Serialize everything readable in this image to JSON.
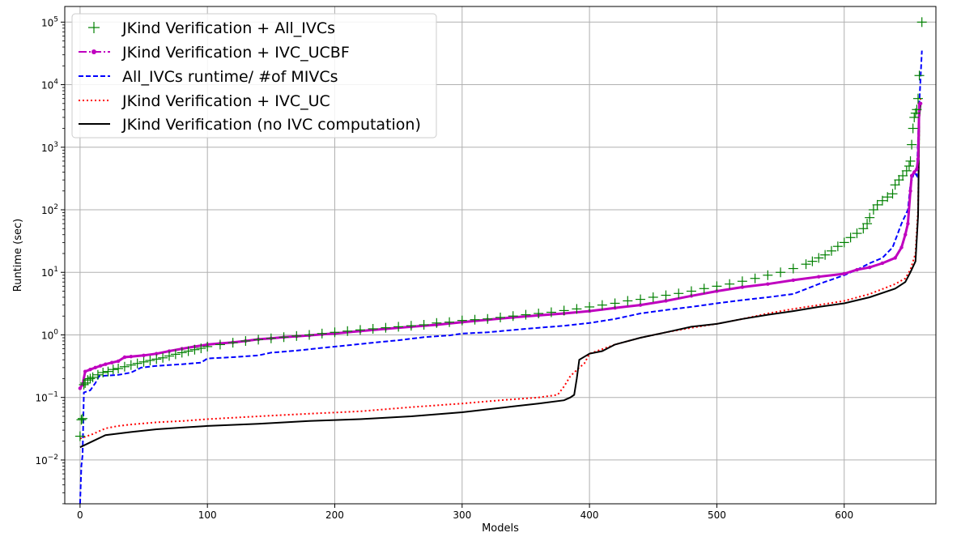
{
  "chart_data": {
    "type": "line",
    "title": "",
    "xlabel": "Models",
    "ylabel": "Runtime (sec)",
    "xscale": "linear",
    "yscale": "log",
    "xlim": [
      -12,
      672
    ],
    "ylim_exp": [
      -2.7,
      5.25
    ],
    "xticks": [
      0,
      100,
      200,
      300,
      400,
      500,
      600
    ],
    "ytick_exponents": [
      -2,
      -1,
      0,
      1,
      2,
      3,
      4,
      5
    ],
    "ytick_base": "10",
    "grid": true,
    "legend_position": "upper-left",
    "series": [
      {
        "name": "JKind Verification + All_IVCs",
        "style": "plus-marker",
        "color": "#008000",
        "points": [
          [
            0,
            0.024
          ],
          [
            1,
            0.044
          ],
          [
            2,
            0.046
          ],
          [
            3,
            0.16
          ],
          [
            4,
            0.17
          ],
          [
            6,
            0.19
          ],
          [
            8,
            0.2
          ],
          [
            10,
            0.21
          ],
          [
            14,
            0.23
          ],
          [
            18,
            0.25
          ],
          [
            22,
            0.26
          ],
          [
            26,
            0.28
          ],
          [
            30,
            0.29
          ],
          [
            35,
            0.31
          ],
          [
            40,
            0.33
          ],
          [
            45,
            0.35
          ],
          [
            50,
            0.37
          ],
          [
            55,
            0.39
          ],
          [
            60,
            0.41
          ],
          [
            65,
            0.43
          ],
          [
            70,
            0.46
          ],
          [
            75,
            0.49
          ],
          [
            80,
            0.52
          ],
          [
            85,
            0.55
          ],
          [
            90,
            0.58
          ],
          [
            95,
            0.61
          ],
          [
            100,
            0.65
          ],
          [
            110,
            0.7
          ],
          [
            120,
            0.75
          ],
          [
            130,
            0.8
          ],
          [
            140,
            0.84
          ],
          [
            150,
            0.88
          ],
          [
            160,
            0.92
          ],
          [
            170,
            0.96
          ],
          [
            180,
            1.0
          ],
          [
            190,
            1.05
          ],
          [
            200,
            1.1
          ],
          [
            210,
            1.15
          ],
          [
            220,
            1.2
          ],
          [
            230,
            1.25
          ],
          [
            240,
            1.3
          ],
          [
            250,
            1.35
          ],
          [
            260,
            1.4
          ],
          [
            270,
            1.45
          ],
          [
            280,
            1.55
          ],
          [
            290,
            1.6
          ],
          [
            300,
            1.7
          ],
          [
            310,
            1.75
          ],
          [
            320,
            1.8
          ],
          [
            330,
            1.9
          ],
          [
            340,
            2.0
          ],
          [
            350,
            2.1
          ],
          [
            360,
            2.2
          ],
          [
            370,
            2.3
          ],
          [
            380,
            2.45
          ],
          [
            390,
            2.6
          ],
          [
            400,
            2.8
          ],
          [
            410,
            3.0
          ],
          [
            420,
            3.2
          ],
          [
            430,
            3.5
          ],
          [
            440,
            3.7
          ],
          [
            450,
            4.0
          ],
          [
            460,
            4.3
          ],
          [
            470,
            4.6
          ],
          [
            480,
            5.0
          ],
          [
            490,
            5.5
          ],
          [
            500,
            6.0
          ],
          [
            510,
            6.5
          ],
          [
            520,
            7.2
          ],
          [
            530,
            8.0
          ],
          [
            540,
            9.0
          ],
          [
            550,
            10.0
          ],
          [
            560,
            11.5
          ],
          [
            570,
            13.5
          ],
          [
            575,
            15.0
          ],
          [
            580,
            17.0
          ],
          [
            585,
            19.0
          ],
          [
            590,
            22.0
          ],
          [
            595,
            26.0
          ],
          [
            600,
            30.0
          ],
          [
            605,
            36.0
          ],
          [
            610,
            42.0
          ],
          [
            615,
            50.0
          ],
          [
            618,
            60.0
          ],
          [
            620,
            75.0
          ],
          [
            623,
            100.0
          ],
          [
            626,
            120.0
          ],
          [
            630,
            140.0
          ],
          [
            634,
            160.0
          ],
          [
            638,
            180.0
          ],
          [
            640,
            250.0
          ],
          [
            643,
            300.0
          ],
          [
            646,
            350.0
          ],
          [
            649,
            420.0
          ],
          [
            651,
            500.0
          ],
          [
            652,
            600.0
          ],
          [
            653,
            1100.0
          ],
          [
            654,
            2000.0
          ],
          [
            655,
            3000.0
          ],
          [
            656,
            3500.0
          ],
          [
            657,
            4000.0
          ],
          [
            658,
            6000.0
          ],
          [
            659,
            14000.0
          ],
          [
            661,
            100000.0
          ]
        ]
      },
      {
        "name": "JKind Verification + IVC_UCBF",
        "style": "dash-dot-marker",
        "color": "#bf00bf",
        "points": [
          [
            0,
            0.14
          ],
          [
            2,
            0.16
          ],
          [
            4,
            0.26
          ],
          [
            8,
            0.28
          ],
          [
            12,
            0.3
          ],
          [
            16,
            0.32
          ],
          [
            20,
            0.34
          ],
          [
            25,
            0.36
          ],
          [
            30,
            0.38
          ],
          [
            35,
            0.44
          ],
          [
            40,
            0.45
          ],
          [
            50,
            0.47
          ],
          [
            60,
            0.5
          ],
          [
            70,
            0.55
          ],
          [
            80,
            0.6
          ],
          [
            90,
            0.65
          ],
          [
            100,
            0.7
          ],
          [
            110,
            0.73
          ],
          [
            120,
            0.76
          ],
          [
            130,
            0.8
          ],
          [
            140,
            0.85
          ],
          [
            150,
            0.88
          ],
          [
            160,
            0.92
          ],
          [
            170,
            0.95
          ],
          [
            180,
            0.98
          ],
          [
            190,
            1.02
          ],
          [
            200,
            1.05
          ],
          [
            220,
            1.15
          ],
          [
            240,
            1.25
          ],
          [
            260,
            1.35
          ],
          [
            280,
            1.45
          ],
          [
            300,
            1.6
          ],
          [
            320,
            1.75
          ],
          [
            340,
            1.9
          ],
          [
            360,
            2.05
          ],
          [
            380,
            2.2
          ],
          [
            400,
            2.4
          ],
          [
            420,
            2.7
          ],
          [
            440,
            3.0
          ],
          [
            460,
            3.5
          ],
          [
            480,
            4.2
          ],
          [
            500,
            5.0
          ],
          [
            520,
            5.8
          ],
          [
            540,
            6.5
          ],
          [
            560,
            7.5
          ],
          [
            580,
            8.5
          ],
          [
            600,
            9.5
          ],
          [
            610,
            11.0
          ],
          [
            620,
            12.0
          ],
          [
            630,
            14.0
          ],
          [
            640,
            17.0
          ],
          [
            645,
            25.0
          ],
          [
            648,
            40.0
          ],
          [
            650,
            60.0
          ],
          [
            652,
            200.0
          ],
          [
            653,
            350.0
          ],
          [
            655,
            400.0
          ],
          [
            657,
            450.0
          ],
          [
            658,
            650.0
          ],
          [
            659,
            5000.0
          ],
          [
            660,
            5000.0
          ]
        ]
      },
      {
        "name": "All_IVCs runtime/ #of MIVCs",
        "style": "dashed",
        "color": "#0000ff",
        "points": [
          [
            0,
            0.002
          ],
          [
            1,
            0.008
          ],
          [
            2,
            0.012
          ],
          [
            3,
            0.12
          ],
          [
            8,
            0.13
          ],
          [
            12,
            0.17
          ],
          [
            15,
            0.22
          ],
          [
            30,
            0.23
          ],
          [
            40,
            0.25
          ],
          [
            48,
            0.3
          ],
          [
            60,
            0.32
          ],
          [
            80,
            0.34
          ],
          [
            95,
            0.36
          ],
          [
            100,
            0.42
          ],
          [
            120,
            0.44
          ],
          [
            140,
            0.47
          ],
          [
            150,
            0.52
          ],
          [
            170,
            0.56
          ],
          [
            190,
            0.62
          ],
          [
            210,
            0.68
          ],
          [
            230,
            0.75
          ],
          [
            250,
            0.82
          ],
          [
            270,
            0.92
          ],
          [
            290,
            0.98
          ],
          [
            300,
            1.05
          ],
          [
            320,
            1.1
          ],
          [
            340,
            1.2
          ],
          [
            360,
            1.3
          ],
          [
            380,
            1.4
          ],
          [
            400,
            1.55
          ],
          [
            420,
            1.8
          ],
          [
            440,
            2.2
          ],
          [
            460,
            2.5
          ],
          [
            480,
            2.8
          ],
          [
            500,
            3.2
          ],
          [
            520,
            3.6
          ],
          [
            540,
            4.0
          ],
          [
            560,
            4.5
          ],
          [
            580,
            6.5
          ],
          [
            600,
            9.0
          ],
          [
            610,
            11.0
          ],
          [
            620,
            14.0
          ],
          [
            630,
            17.0
          ],
          [
            638,
            25.0
          ],
          [
            645,
            60.0
          ],
          [
            650,
            100.0
          ],
          [
            652,
            250.0
          ],
          [
            655,
            400.0
          ],
          [
            657,
            350.0
          ],
          [
            659,
            5000.0
          ],
          [
            661,
            35000.0
          ]
        ]
      },
      {
        "name": "JKind Verification + IVC_UC",
        "style": "dotted",
        "color": "#ff0000",
        "points": [
          [
            0,
            0.022
          ],
          [
            10,
            0.026
          ],
          [
            20,
            0.032
          ],
          [
            30,
            0.035
          ],
          [
            40,
            0.037
          ],
          [
            60,
            0.04
          ],
          [
            80,
            0.042
          ],
          [
            100,
            0.045
          ],
          [
            140,
            0.05
          ],
          [
            180,
            0.055
          ],
          [
            220,
            0.06
          ],
          [
            260,
            0.07
          ],
          [
            300,
            0.08
          ],
          [
            330,
            0.09
          ],
          [
            360,
            0.1
          ],
          [
            375,
            0.11
          ],
          [
            380,
            0.15
          ],
          [
            385,
            0.22
          ],
          [
            392,
            0.3
          ],
          [
            396,
            0.35
          ],
          [
            400,
            0.5
          ],
          [
            420,
            0.7
          ],
          [
            440,
            0.9
          ],
          [
            460,
            1.1
          ],
          [
            480,
            1.3
          ],
          [
            500,
            1.5
          ],
          [
            520,
            1.8
          ],
          [
            540,
            2.2
          ],
          [
            560,
            2.6
          ],
          [
            580,
            3.0
          ],
          [
            600,
            3.5
          ],
          [
            620,
            4.5
          ],
          [
            640,
            6.5
          ],
          [
            648,
            8.0
          ],
          [
            652,
            11.0
          ],
          [
            656,
            20.0
          ],
          [
            658,
            100.0
          ],
          [
            659,
            3000.0
          ],
          [
            660,
            6000.0
          ]
        ]
      },
      {
        "name": "JKind Verification (no IVC computation)",
        "style": "solid",
        "color": "#000000",
        "points": [
          [
            0,
            0.016
          ],
          [
            10,
            0.02
          ],
          [
            20,
            0.025
          ],
          [
            40,
            0.028
          ],
          [
            60,
            0.031
          ],
          [
            80,
            0.033
          ],
          [
            100,
            0.035
          ],
          [
            140,
            0.038
          ],
          [
            180,
            0.042
          ],
          [
            220,
            0.045
          ],
          [
            260,
            0.05
          ],
          [
            300,
            0.058
          ],
          [
            330,
            0.068
          ],
          [
            360,
            0.08
          ],
          [
            380,
            0.09
          ],
          [
            385,
            0.1
          ],
          [
            388,
            0.11
          ],
          [
            390,
            0.2
          ],
          [
            392,
            0.4
          ],
          [
            400,
            0.5
          ],
          [
            410,
            0.55
          ],
          [
            420,
            0.7
          ],
          [
            440,
            0.9
          ],
          [
            460,
            1.1
          ],
          [
            480,
            1.35
          ],
          [
            500,
            1.5
          ],
          [
            520,
            1.8
          ],
          [
            540,
            2.1
          ],
          [
            560,
            2.4
          ],
          [
            580,
            2.8
          ],
          [
            600,
            3.2
          ],
          [
            620,
            4.0
          ],
          [
            640,
            5.5
          ],
          [
            648,
            7.0
          ],
          [
            652,
            10.0
          ],
          [
            656,
            15.0
          ],
          [
            658,
            80.0
          ],
          [
            659,
            3000.0
          ],
          [
            660,
            5000.0
          ]
        ]
      }
    ]
  }
}
